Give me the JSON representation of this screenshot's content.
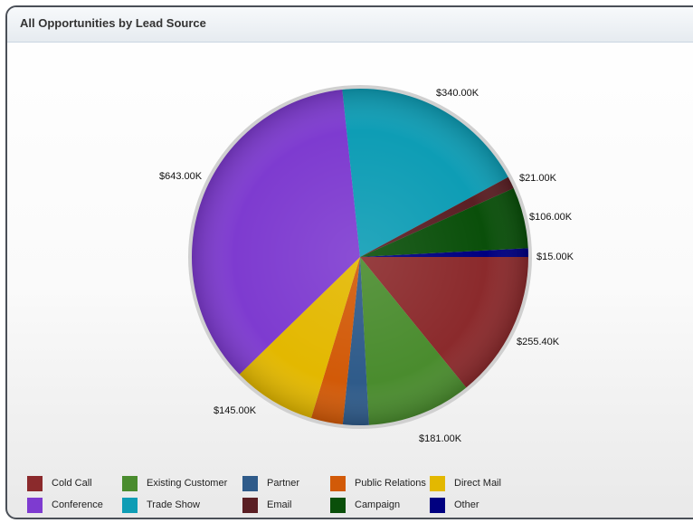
{
  "panel": {
    "title": "All Opportunities by Lead Source"
  },
  "chart_data": {
    "type": "pie",
    "slices": [
      {
        "name": "Other",
        "value": 15,
        "label": "$15.00K",
        "color": "#000080"
      },
      {
        "name": "Cold Call",
        "value": 255.4,
        "label": "$255.40K",
        "color": "#8b2a2c"
      },
      {
        "name": "Existing Customer",
        "value": 181,
        "label": "$181.00K",
        "color": "#4a8c2e"
      },
      {
        "name": "Partner",
        "value": 45,
        "label": "",
        "color": "#2f5b8a"
      },
      {
        "name": "Public Relations",
        "value": 55,
        "label": "",
        "color": "#d25a08"
      },
      {
        "name": "Direct Mail",
        "value": 145,
        "label": "$145.00K",
        "color": "#e3b800"
      },
      {
        "name": "Conference",
        "value": 643,
        "label": "$643.00K",
        "color": "#7e3bd0"
      },
      {
        "name": "Trade Show",
        "value": 340,
        "label": "$340.00K",
        "color": "#0e9db5"
      },
      {
        "name": "Email",
        "value": 21,
        "label": "$21.00K",
        "color": "#5a1f24"
      },
      {
        "name": "Campaign",
        "value": 106,
        "label": "$106.00K",
        "color": "#0a4f0a"
      }
    ]
  },
  "legend": [
    {
      "label": "Cold Call",
      "color": "#8b2a2c"
    },
    {
      "label": "Existing Customer",
      "color": "#4a8c2e"
    },
    {
      "label": "Partner",
      "color": "#2f5b8a"
    },
    {
      "label": "Public Relations",
      "color": "#d25a08"
    },
    {
      "label": "Direct Mail",
      "color": "#e3b800"
    },
    {
      "label": "Conference",
      "color": "#7e3bd0"
    },
    {
      "label": "Trade Show",
      "color": "#0e9db5"
    },
    {
      "label": "Email",
      "color": "#5a1f24"
    },
    {
      "label": "Campaign",
      "color": "#0a4f0a"
    },
    {
      "label": "Other",
      "color": "#000080"
    }
  ]
}
